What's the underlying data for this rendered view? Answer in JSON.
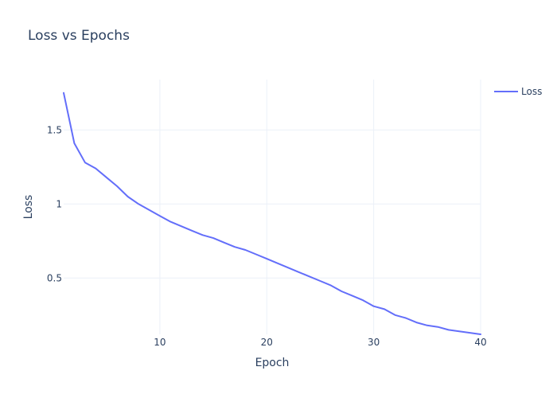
{
  "chart_data": {
    "type": "line",
    "title": "Loss vs Epochs",
    "xlabel": "Epoch",
    "ylabel": "Loss",
    "xlim": [
      1,
      40
    ],
    "ylim": [
      0.12,
      1.84
    ],
    "x_ticks": [
      10,
      20,
      30,
      40
    ],
    "y_ticks": [
      0.5,
      1,
      1.5
    ],
    "x_tick_labels": [
      "10",
      "20",
      "30",
      "40"
    ],
    "y_tick_labels": [
      "0.5",
      "1",
      "1.5"
    ],
    "grid": true,
    "legend_position": "top-right",
    "series": [
      {
        "name": "Loss",
        "color": "#636efa",
        "x": [
          1,
          2,
          3,
          4,
          5,
          6,
          7,
          8,
          9,
          10,
          11,
          12,
          13,
          14,
          15,
          16,
          17,
          18,
          19,
          20,
          21,
          22,
          23,
          24,
          25,
          26,
          27,
          28,
          29,
          30,
          31,
          32,
          33,
          34,
          35,
          36,
          37,
          38,
          39,
          40
        ],
        "values": [
          1.75,
          1.41,
          1.28,
          1.24,
          1.18,
          1.12,
          1.05,
          1.0,
          0.96,
          0.92,
          0.88,
          0.85,
          0.82,
          0.79,
          0.77,
          0.74,
          0.71,
          0.69,
          0.66,
          0.63,
          0.6,
          0.57,
          0.54,
          0.51,
          0.48,
          0.45,
          0.41,
          0.38,
          0.35,
          0.31,
          0.29,
          0.25,
          0.23,
          0.2,
          0.18,
          0.17,
          0.15,
          0.14,
          0.13,
          0.12
        ]
      }
    ]
  }
}
